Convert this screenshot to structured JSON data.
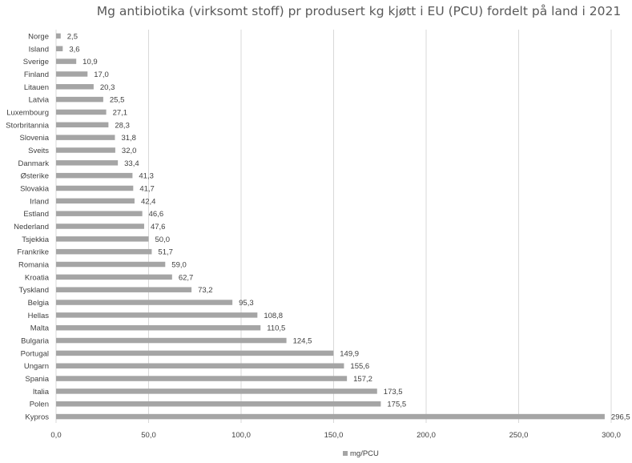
{
  "chart_data": {
    "type": "bar",
    "orientation": "horizontal",
    "title": "Mg antibiotika (virksomt stoff) pr produsert kg kjøtt i EU (PCU) fordelt på land i 2021",
    "xlabel": "",
    "ylabel": "",
    "xlim": [
      0,
      300
    ],
    "grid": true,
    "legend_position": "bottom",
    "categories": [
      "Norge",
      "Island",
      "Sverige",
      "Finland",
      "Litauen",
      "Latvia",
      "Luxembourg",
      "Storbritannia",
      "Slovenia",
      "Sveits",
      "Danmark",
      "Østerike",
      "Slovakia",
      "Irland",
      "Estland",
      "Nederland",
      "Tsjekkia",
      "Frankrike",
      "Romania",
      "Kroatia",
      "Tyskland",
      "Belgia",
      "Hellas",
      "Malta",
      "Bulgaria",
      "Portugal",
      "Ungarn",
      "Spania",
      "Italia",
      "Polen",
      "Kypros"
    ],
    "series": [
      {
        "name": "mg/PCU",
        "color": "#a5a5a5",
        "values": [
          2.5,
          3.6,
          10.9,
          17.0,
          20.3,
          25.5,
          27.1,
          28.3,
          31.8,
          32.0,
          33.4,
          41.3,
          41.7,
          42.4,
          46.6,
          47.6,
          50.0,
          51.7,
          59.0,
          62.7,
          73.2,
          95.3,
          108.8,
          110.5,
          124.5,
          149.9,
          155.6,
          157.2,
          173.5,
          175.5,
          296.5
        ],
        "labels": [
          "2,5",
          "3,6",
          "10,9",
          "17,0",
          "20,3",
          "25,5",
          "27,1",
          "28,3",
          "31,8",
          "32,0",
          "33,4",
          "41,3",
          "41,7",
          "42,4",
          "46,6",
          "47,6",
          "50,0",
          "51,7",
          "59,0",
          "62,7",
          "73,2",
          "95,3",
          "108,8",
          "110,5",
          "124,5",
          "149,9",
          "155,6",
          "157,2",
          "173,5",
          "175,5",
          "296,5"
        ]
      }
    ],
    "x_ticks": [
      0,
      50,
      100,
      150,
      200,
      250,
      300
    ],
    "x_tick_labels": [
      "0,0",
      "50,0",
      "100,0",
      "150,0",
      "200,0",
      "250,0",
      "300,0"
    ]
  }
}
